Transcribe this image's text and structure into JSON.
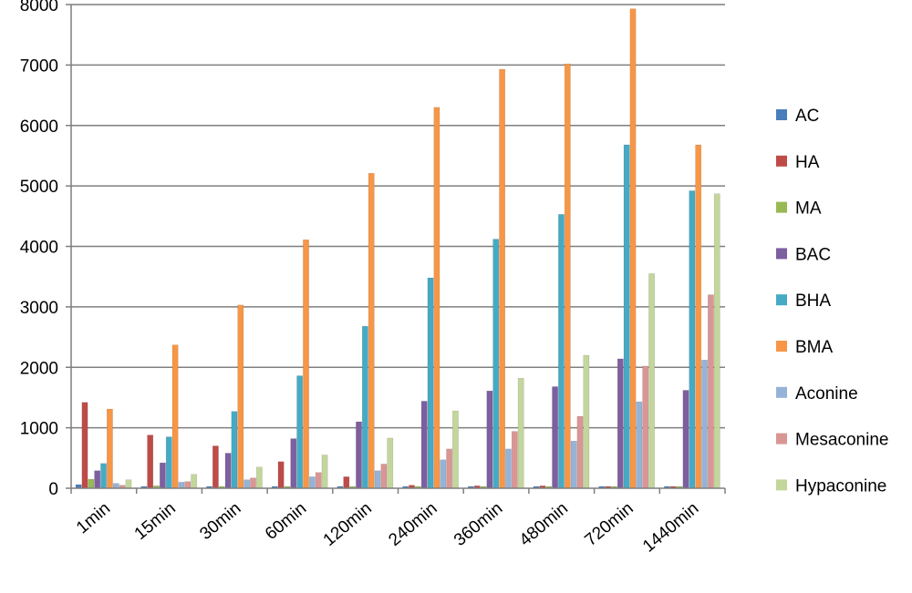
{
  "chart_data": {
    "type": "bar",
    "title": "",
    "xlabel": "",
    "ylabel": "",
    "ylim": [
      0,
      8000
    ],
    "yticks": [
      0,
      1000,
      2000,
      3000,
      4000,
      5000,
      6000,
      7000,
      8000
    ],
    "grid": true,
    "legend_position": "right",
    "categories": [
      "1min",
      "15min",
      "30min",
      "60min",
      "120min",
      "240min",
      "360min",
      "480min",
      "720min",
      "1440min"
    ],
    "series": [
      {
        "name": "AC",
        "color": "#4a7ebb",
        "values": [
          60,
          30,
          30,
          30,
          30,
          30,
          30,
          30,
          30,
          30
        ]
      },
      {
        "name": "HA",
        "color": "#be4b48",
        "values": [
          1420,
          880,
          700,
          440,
          190,
          50,
          40,
          40,
          30,
          30
        ]
      },
      {
        "name": "MA",
        "color": "#98b954",
        "values": [
          150,
          40,
          30,
          30,
          30,
          30,
          30,
          30,
          30,
          30
        ]
      },
      {
        "name": "BAC",
        "color": "#7d5fa0",
        "values": [
          290,
          420,
          580,
          820,
          1100,
          1440,
          1610,
          1680,
          2140,
          1620
        ]
      },
      {
        "name": "BHA",
        "color": "#46aac5",
        "values": [
          410,
          850,
          1270,
          1860,
          2680,
          3480,
          4120,
          4530,
          5680,
          4920
        ]
      },
      {
        "name": "BMA",
        "color": "#f79646",
        "values": [
          1310,
          2370,
          3030,
          4110,
          5210,
          6300,
          6930,
          7020,
          7930,
          5680
        ]
      },
      {
        "name": "Aconine",
        "color": "#95b3d7",
        "values": [
          80,
          100,
          140,
          190,
          290,
          470,
          650,
          780,
          1430,
          2120
        ]
      },
      {
        "name": "Mesaconine",
        "color": "#d99694",
        "values": [
          50,
          110,
          170,
          260,
          400,
          650,
          940,
          1190,
          2020,
          3200
        ]
      },
      {
        "name": "Hypaconine",
        "color": "#c3d69b",
        "values": [
          140,
          230,
          350,
          550,
          830,
          1280,
          1820,
          2200,
          3550,
          4870
        ]
      }
    ]
  }
}
